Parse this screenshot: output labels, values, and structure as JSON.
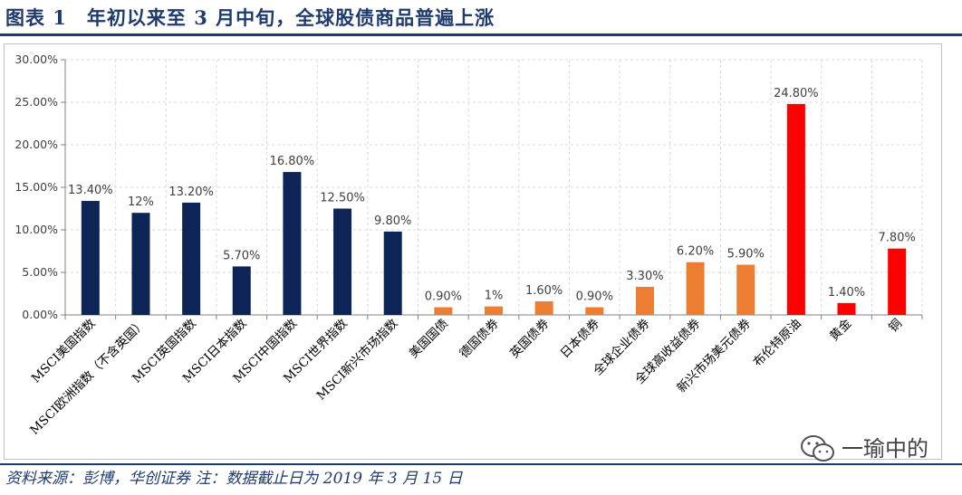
{
  "title": "图表 1　年初以来至 3 月中旬，全球股债商品普遍上涨",
  "source": "资料来源：彭博，华创证券 注：数据截止日为 2019 年 3 月 15 日",
  "watermark": {
    "text": "一瑜中的",
    "icon": "wechat-icon"
  },
  "colors": {
    "equity": "#0d2456",
    "bond": "#ed7d31",
    "commodity": "#ff0000",
    "grid": "#d9d9d9",
    "title": "#1f3b6e"
  },
  "chart_data": {
    "type": "bar",
    "title": "",
    "xlabel": "",
    "ylabel": "",
    "ylim": [
      0,
      30
    ],
    "yticks": [
      "0.00%",
      "5.00%",
      "10.00%",
      "15.00%",
      "20.00%",
      "25.00%",
      "30.00%"
    ],
    "grid": true,
    "legend": "none",
    "categories": [
      "MSCI美国指数",
      "MSCI欧洲指数（不含英国）",
      "MSCI英国指数",
      "MSCI日本指数",
      "MSCI中国指数",
      "MSCI世界指数",
      "MSCI新兴市场指数",
      "美国国债",
      "德国债券",
      "英国债券",
      "日本债券",
      "全球企业债券",
      "全球高收益债券",
      "新兴市场美元债券",
      "布伦特原油",
      "黄金",
      "铜"
    ],
    "values": [
      13.4,
      12,
      13.2,
      5.7,
      16.8,
      12.5,
      9.8,
      0.9,
      1,
      1.6,
      0.9,
      3.3,
      6.2,
      5.9,
      24.8,
      1.4,
      7.8
    ],
    "data_labels": [
      "13.40%",
      "12%",
      "13.20%",
      "5.70%",
      "16.80%",
      "12.50%",
      "9.80%",
      "0.90%",
      "1%",
      "1.60%",
      "0.90%",
      "3.30%",
      "6.20%",
      "5.90%",
      "24.80%",
      "1.40%",
      "7.80%"
    ],
    "bar_colors": [
      "#0d2456",
      "#0d2456",
      "#0d2456",
      "#0d2456",
      "#0d2456",
      "#0d2456",
      "#0d2456",
      "#ed7d31",
      "#ed7d31",
      "#ed7d31",
      "#ed7d31",
      "#ed7d31",
      "#ed7d31",
      "#ed7d31",
      "#ff0000",
      "#ff0000",
      "#ff0000"
    ]
  }
}
